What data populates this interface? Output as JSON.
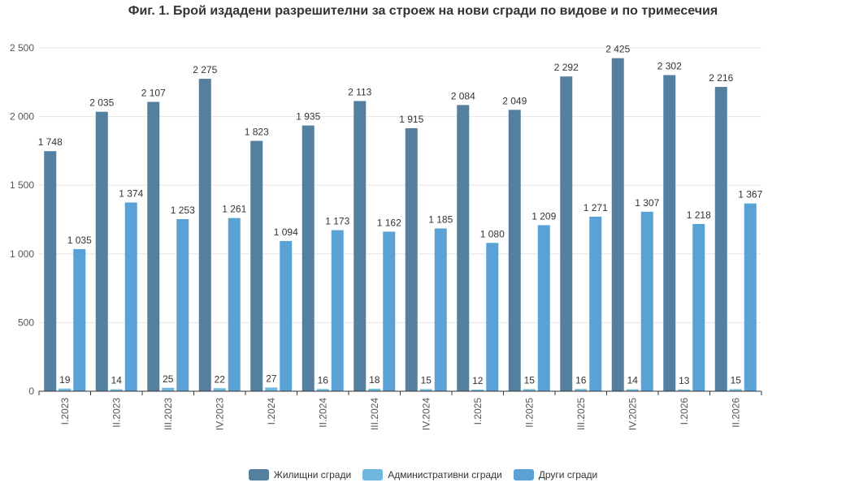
{
  "title": "Фиг. 1. Брой издадени разрешителни за строеж на нови сгради по видове и по тримесечия",
  "colors": {
    "residential": "#557f9f",
    "administrative": "#6db8dc",
    "other": "#5aa2d5",
    "grid": "#e6e6e6",
    "axis": "#333333"
  },
  "chart_data": {
    "type": "bar",
    "title": "Фиг. 1. Брой издадени разрешителни за строеж на нови сгради по видове и по тримесечия",
    "xlabel": "",
    "ylabel": "",
    "ylim": [
      0,
      2500
    ],
    "yticks": [
      0,
      500,
      1000,
      1500,
      2000,
      2500
    ],
    "ytick_labels": [
      "0",
      "500",
      "1 000",
      "1 500",
      "2 000",
      "2 500"
    ],
    "grid": true,
    "legend_position": "bottom-center",
    "categories": [
      "I.2023",
      "II.2023",
      "III.2023",
      "IV.2023",
      "I.2024",
      "II.2024",
      "III.2024",
      "IV.2024",
      "I.2025",
      "II.2025",
      "III.2025",
      "IV.2025",
      "I.2026",
      "II.2026"
    ],
    "series": [
      {
        "name": "Жилищни сгради",
        "color_key": "residential",
        "values": [
          1748,
          2035,
          2107,
          2275,
          1823,
          1935,
          2113,
          1915,
          2084,
          2049,
          2292,
          2425,
          2302,
          2216
        ],
        "labels": [
          "1 748",
          "2 035",
          "2 107",
          "2 275",
          "1 823",
          "1 935",
          "2 113",
          "1 915",
          "2 084",
          "2 049",
          "2 292",
          "2 425",
          "2 302",
          "2 216"
        ]
      },
      {
        "name": "Административни сгради",
        "color_key": "administrative",
        "values": [
          19,
          14,
          25,
          22,
          27,
          16,
          18,
          15,
          12,
          15,
          16,
          14,
          13,
          15
        ],
        "labels": [
          "19",
          "14",
          "25",
          "22",
          "27",
          "16",
          "18",
          "15",
          "12",
          "15",
          "16",
          "14",
          "13",
          "15"
        ]
      },
      {
        "name": "Други сгради",
        "color_key": "other",
        "values": [
          1035,
          1374,
          1253,
          1261,
          1094,
          1173,
          1162,
          1185,
          1080,
          1209,
          1271,
          1307,
          1218,
          1367
        ],
        "labels": [
          "1 035",
          "1 374",
          "1 253",
          "1 261",
          "1 094",
          "1 173",
          "1 162",
          "1 185",
          "1 080",
          "1 209",
          "1 271",
          "1 307",
          "1 218",
          "1 367"
        ]
      }
    ]
  }
}
